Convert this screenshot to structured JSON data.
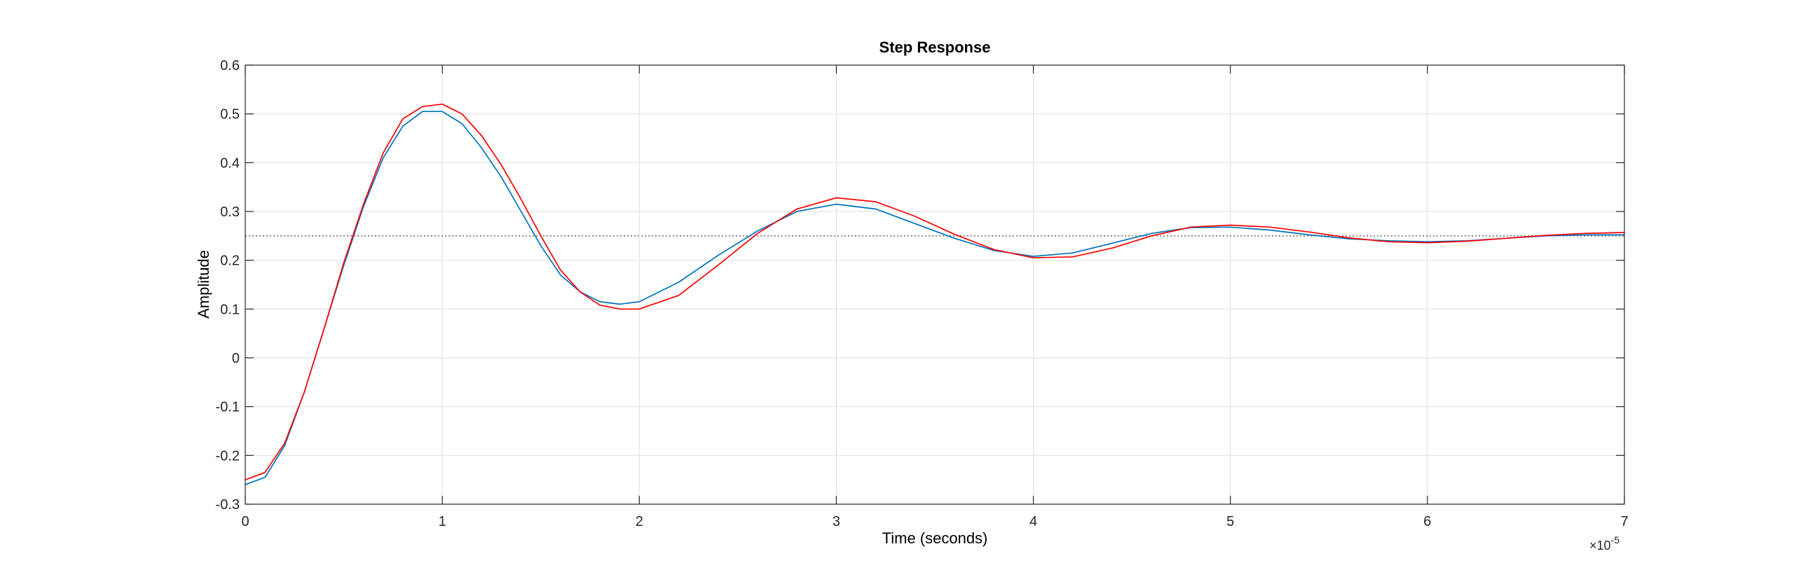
{
  "chart_data": {
    "type": "line",
    "title": "Step Response",
    "xlabel": "Time (seconds)",
    "ylabel": "Amplitude",
    "x_exponent_label": "×10",
    "x_exponent_power": "-5",
    "xlim": [
      0,
      7
    ],
    "ylim": [
      -0.3,
      0.6
    ],
    "xticks": [
      "0",
      "1",
      "2",
      "3",
      "4",
      "5",
      "6",
      "7"
    ],
    "yticks": [
      "0.6",
      "0.5",
      "0.4",
      "0.3",
      "0.2",
      "0.1",
      "0",
      "-0.1",
      "-0.2",
      "-0.3"
    ],
    "grid": true,
    "steady_state": 0.25,
    "series": [
      {
        "color": "#0072BD",
        "x": [
          0,
          0.1,
          0.2,
          0.3,
          0.4,
          0.5,
          0.6,
          0.7,
          0.8,
          0.9,
          1.0,
          1.1,
          1.2,
          1.3,
          1.4,
          1.5,
          1.6,
          1.7,
          1.8,
          1.9,
          2.0,
          2.2,
          2.4,
          2.6,
          2.8,
          3.0,
          3.2,
          3.4,
          3.6,
          3.8,
          4.0,
          4.2,
          4.4,
          4.6,
          4.8,
          5.0,
          5.2,
          5.4,
          5.6,
          5.8,
          6.0,
          6.2,
          6.4,
          6.6,
          6.8,
          7.0
        ],
        "y": [
          -0.26,
          -0.245,
          -0.18,
          -0.07,
          0.06,
          0.19,
          0.31,
          0.41,
          0.475,
          0.505,
          0.505,
          0.48,
          0.43,
          0.37,
          0.3,
          0.23,
          0.17,
          0.135,
          0.115,
          0.11,
          0.115,
          0.155,
          0.21,
          0.26,
          0.3,
          0.315,
          0.305,
          0.275,
          0.245,
          0.22,
          0.208,
          0.215,
          0.235,
          0.255,
          0.267,
          0.268,
          0.262,
          0.252,
          0.244,
          0.24,
          0.238,
          0.24,
          0.245,
          0.25,
          0.252,
          0.252
        ]
      },
      {
        "color": "#FF0000",
        "x": [
          0,
          0.1,
          0.2,
          0.3,
          0.4,
          0.5,
          0.6,
          0.7,
          0.8,
          0.9,
          1.0,
          1.1,
          1.2,
          1.3,
          1.4,
          1.5,
          1.6,
          1.7,
          1.8,
          1.9,
          2.0,
          2.2,
          2.4,
          2.6,
          2.8,
          3.0,
          3.2,
          3.4,
          3.6,
          3.8,
          4.0,
          4.2,
          4.4,
          4.6,
          4.8,
          5.0,
          5.2,
          5.4,
          5.6,
          5.8,
          6.0,
          6.2,
          6.4,
          6.6,
          6.8,
          7.0
        ],
        "y": [
          -0.25,
          -0.235,
          -0.175,
          -0.07,
          0.06,
          0.195,
          0.315,
          0.42,
          0.49,
          0.515,
          0.52,
          0.5,
          0.455,
          0.395,
          0.325,
          0.25,
          0.18,
          0.135,
          0.108,
          0.1,
          0.1,
          0.128,
          0.19,
          0.255,
          0.305,
          0.328,
          0.32,
          0.29,
          0.253,
          0.222,
          0.205,
          0.207,
          0.225,
          0.25,
          0.268,
          0.272,
          0.268,
          0.258,
          0.246,
          0.238,
          0.236,
          0.239,
          0.245,
          0.251,
          0.255,
          0.257
        ]
      }
    ]
  }
}
